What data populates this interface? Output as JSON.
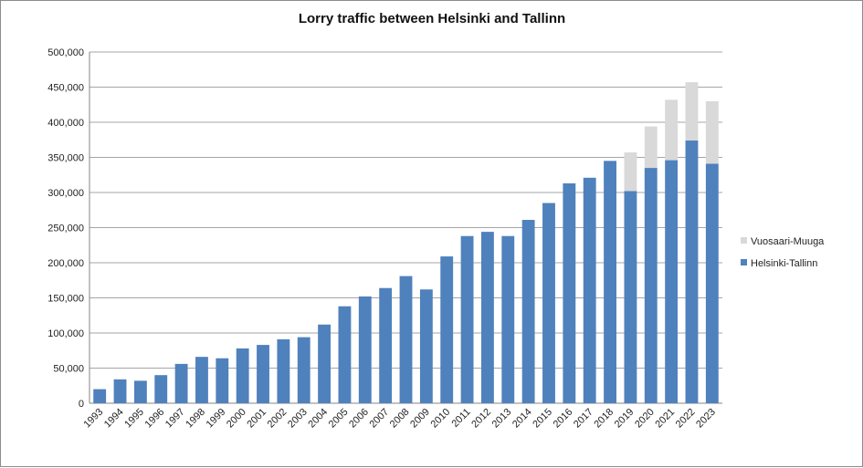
{
  "chart_data": {
    "type": "bar",
    "stacked": true,
    "title": "Lorry traffic between Helsinki and Tallinn",
    "xlabel": "",
    "ylabel": "",
    "ylim": [
      0,
      500000
    ],
    "yticks": [
      "0",
      "50,000",
      "100,000",
      "150,000",
      "200,000",
      "250,000",
      "300,000",
      "350,000",
      "400,000",
      "450,000",
      "500,000"
    ],
    "grid": true,
    "legend_position": "right",
    "categories": [
      "1993",
      "1994",
      "1995",
      "1996",
      "1997",
      "1998",
      "1999",
      "2000",
      "2001",
      "2002",
      "2003",
      "2004",
      "2005",
      "2006",
      "2007",
      "2008",
      "2009",
      "2010",
      "2011",
      "2012",
      "2013",
      "2014",
      "2015",
      "2016",
      "2017",
      "2018",
      "2019",
      "2020",
      "2021",
      "2022",
      "2023"
    ],
    "series": [
      {
        "name": "Helsinki-Tallinn",
        "color": "#4f81bd",
        "values": [
          20000,
          34000,
          32000,
          40000,
          56000,
          66000,
          64000,
          78000,
          83000,
          91000,
          94000,
          112000,
          138000,
          152000,
          164000,
          181000,
          162000,
          209000,
          238000,
          244000,
          238000,
          261000,
          285000,
          313000,
          321000,
          345000,
          302000,
          335000,
          346000,
          374000,
          341000
        ]
      },
      {
        "name": "Vuosaari-Muuga",
        "color": "#d9d9d9",
        "values": [
          0,
          0,
          0,
          0,
          0,
          0,
          0,
          0,
          0,
          0,
          0,
          0,
          0,
          0,
          0,
          0,
          0,
          0,
          0,
          0,
          0,
          0,
          0,
          0,
          0,
          0,
          55000,
          59000,
          86000,
          83000,
          89000
        ]
      }
    ]
  }
}
